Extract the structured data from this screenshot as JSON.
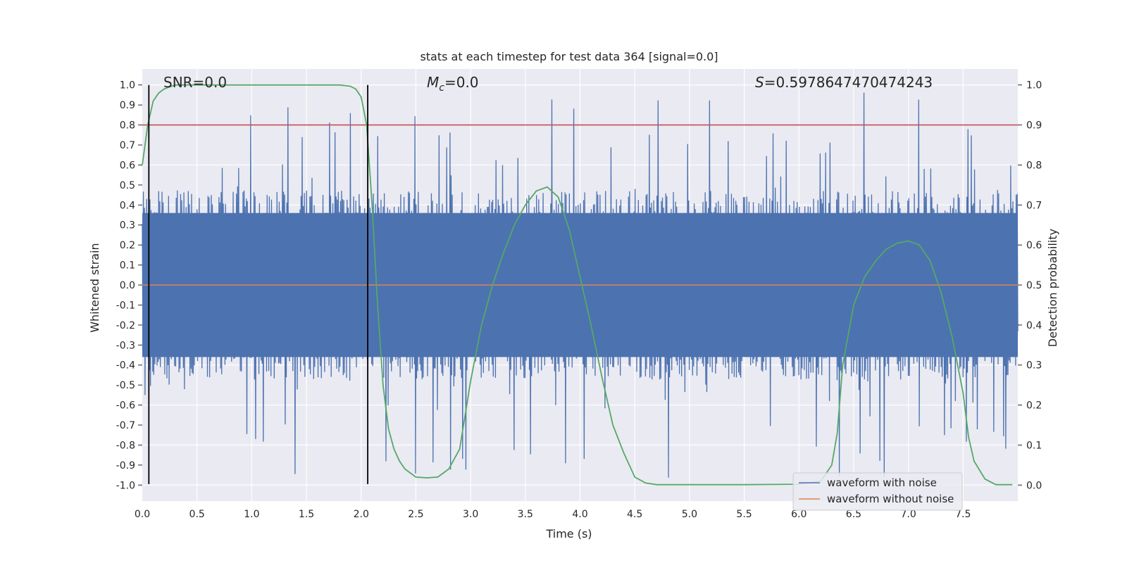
{
  "chart_data": {
    "type": "line",
    "title": "stats at each timestep for test data 364 [signal=0.0]",
    "xlabel": "Time (s)",
    "ylabel_left": "Whitened strain",
    "ylabel_right": "Detection probability",
    "xlim": [
      0.0,
      8.0
    ],
    "ylim_left": [
      -1.08,
      1.08
    ],
    "ylim_right": [
      -0.04,
      1.04
    ],
    "x_ticks": [
      "0.0",
      "0.5",
      "1.0",
      "1.5",
      "2.0",
      "2.5",
      "3.0",
      "3.5",
      "4.0",
      "4.5",
      "5.0",
      "5.5",
      "6.0",
      "6.5",
      "7.0",
      "7.5"
    ],
    "x_tick_values": [
      0.0,
      0.5,
      1.0,
      1.5,
      2.0,
      2.5,
      3.0,
      3.5,
      4.0,
      4.5,
      5.0,
      5.5,
      6.0,
      6.5,
      7.0,
      7.5
    ],
    "y_left_ticks": [
      "-1.0",
      "-0.9",
      "-0.8",
      "-0.7",
      "-0.6",
      "-0.5",
      "-0.4",
      "-0.3",
      "-0.2",
      "-0.1",
      "0.0",
      "0.1",
      "0.2",
      "0.3",
      "0.4",
      "0.5",
      "0.6",
      "0.7",
      "0.8",
      "0.9",
      "1.0"
    ],
    "y_left_tick_values": [
      -1.0,
      -0.9,
      -0.8,
      -0.7,
      -0.6,
      -0.5,
      -0.4,
      -0.3,
      -0.2,
      -0.1,
      0.0,
      0.1,
      0.2,
      0.3,
      0.4,
      0.5,
      0.6,
      0.7,
      0.8,
      0.9,
      1.0
    ],
    "y_right_ticks": [
      "0.0",
      "0.1",
      "0.2",
      "0.3",
      "0.4",
      "0.5",
      "0.6",
      "0.7",
      "0.8",
      "0.9",
      "1.0"
    ],
    "y_right_tick_values": [
      0.0,
      0.1,
      0.2,
      0.3,
      0.4,
      0.5,
      0.6,
      0.7,
      0.8,
      0.9,
      1.0
    ],
    "annotations": {
      "snr": "SNR=0.0",
      "mc_symbol": "M",
      "mc_sub": "c",
      "mc_value": "=0.0",
      "s_symbol": "S",
      "s_value": "=0.5978647470474243"
    },
    "threshold": {
      "value": 0.9,
      "axis": "right",
      "color": "#c44e52"
    },
    "vertical_markers": [
      0.06,
      2.06
    ],
    "series": [
      {
        "name": "waveform with noise",
        "axis": "left",
        "color": "#4c72b0",
        "style": "noise",
        "amplitude_typical": 0.45,
        "amplitude_peak": 0.97,
        "points": 1600
      },
      {
        "name": "waveform without noise",
        "axis": "left",
        "color": "#dd8452",
        "x": [
          0.0,
          8.0
        ],
        "values": [
          0.0,
          0.0
        ]
      },
      {
        "name": "detection probability",
        "axis": "right",
        "color": "#55a868",
        "x": [
          0.0,
          0.05,
          0.1,
          0.15,
          0.2,
          0.25,
          0.3,
          0.4,
          0.5,
          0.8,
          1.0,
          1.5,
          1.7,
          1.8,
          1.9,
          1.95,
          2.0,
          2.05,
          2.1,
          2.15,
          2.2,
          2.25,
          2.3,
          2.35,
          2.4,
          2.5,
          2.6,
          2.7,
          2.8,
          2.9,
          3.0,
          3.1,
          3.2,
          3.3,
          3.4,
          3.5,
          3.6,
          3.7,
          3.8,
          3.9,
          4.0,
          4.1,
          4.2,
          4.3,
          4.4,
          4.5,
          4.6,
          4.7,
          5.0,
          5.5,
          6.0,
          6.2,
          6.3,
          6.35,
          6.4,
          6.5,
          6.6,
          6.7,
          6.8,
          6.9,
          7.0,
          7.1,
          7.2,
          7.3,
          7.4,
          7.5,
          7.55,
          7.6,
          7.7,
          7.8,
          7.95
        ],
        "values": [
          0.8,
          0.9,
          0.96,
          0.98,
          0.99,
          0.995,
          1.0,
          1.0,
          1.0,
          1.0,
          1.0,
          1.0,
          1.0,
          1.0,
          0.997,
          0.99,
          0.97,
          0.9,
          0.7,
          0.45,
          0.25,
          0.14,
          0.09,
          0.06,
          0.04,
          0.02,
          0.018,
          0.02,
          0.04,
          0.09,
          0.26,
          0.4,
          0.5,
          0.58,
          0.65,
          0.7,
          0.735,
          0.745,
          0.72,
          0.64,
          0.52,
          0.4,
          0.27,
          0.15,
          0.08,
          0.02,
          0.005,
          0.001,
          0.001,
          0.001,
          0.002,
          0.01,
          0.05,
          0.13,
          0.3,
          0.45,
          0.52,
          0.56,
          0.59,
          0.605,
          0.61,
          0.6,
          0.56,
          0.48,
          0.37,
          0.23,
          0.12,
          0.06,
          0.015,
          0.001,
          0.001
        ]
      }
    ],
    "legend": {
      "location": "lower-right",
      "entries": [
        "waveform with noise",
        "waveform without noise"
      ]
    },
    "background_color": "#eaeaf2",
    "grid": true
  }
}
